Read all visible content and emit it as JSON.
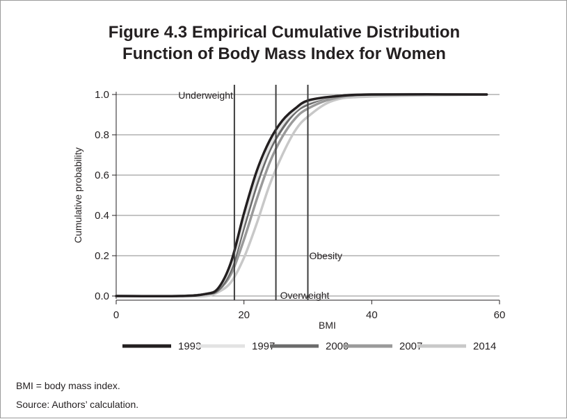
{
  "figure": {
    "title_line1": "Figure 4.3  Empirical Cumulative Distribution",
    "title_line2": "Function of Body Mass Index for Women"
  },
  "notes": {
    "abbreviation": "BMI = body mass index.",
    "source": "Source: Authors’ calculation."
  },
  "chart_data": {
    "type": "line",
    "title": "Figure 4.3  Empirical Cumulative Distribution Function of Body Mass Index for Women",
    "xlabel": "BMI",
    "ylabel": "Cumulative probability",
    "xlim": [
      0,
      60
    ],
    "ylim": [
      0,
      1
    ],
    "xticks": [
      "0",
      "20",
      "40",
      "60"
    ],
    "yticks": [
      "0.0",
      "0.2",
      "0.4",
      "0.6",
      "0.8",
      "1.0"
    ],
    "grid": "horizontal",
    "legend_position": "bottom",
    "reference_lines": [
      {
        "label": "Underweight",
        "x": 18.5
      },
      {
        "label": "Overweight",
        "x": 25
      },
      {
        "label": "Obesity",
        "x": 30
      }
    ],
    "series": [
      {
        "name": "1993",
        "color": "#231f20",
        "x": [
          0,
          10,
          14,
          16,
          18,
          20,
          22,
          24,
          26,
          28,
          30,
          34,
          40,
          58
        ],
        "values": [
          0,
          0,
          0.01,
          0.04,
          0.17,
          0.41,
          0.62,
          0.77,
          0.87,
          0.93,
          0.97,
          0.99,
          1.0,
          1.0
        ]
      },
      {
        "name": "1997",
        "color": "#e3e3e3",
        "x": [
          0,
          10,
          14,
          16,
          18,
          20,
          22,
          24,
          26,
          28,
          30,
          34,
          40,
          58
        ],
        "values": [
          0,
          0,
          0.01,
          0.04,
          0.15,
          0.37,
          0.58,
          0.74,
          0.85,
          0.92,
          0.96,
          0.99,
          1.0,
          1.0
        ]
      },
      {
        "name": "2000",
        "color": "#6b6b6b",
        "x": [
          0,
          10,
          14,
          16,
          18,
          20,
          22,
          24,
          26,
          28,
          30,
          34,
          40,
          58
        ],
        "values": [
          0,
          0,
          0.01,
          0.03,
          0.13,
          0.34,
          0.55,
          0.72,
          0.83,
          0.91,
          0.95,
          0.99,
          1.0,
          1.0
        ]
      },
      {
        "name": "2007",
        "color": "#9a9a9a",
        "x": [
          0,
          10,
          14,
          16,
          18,
          20,
          22,
          24,
          26,
          28,
          30,
          34,
          40,
          58
        ],
        "values": [
          0,
          0,
          0.01,
          0.03,
          0.11,
          0.28,
          0.48,
          0.66,
          0.79,
          0.88,
          0.93,
          0.98,
          1.0,
          1.0
        ]
      },
      {
        "name": "2014",
        "color": "#c8c8c8",
        "x": [
          0,
          10,
          14,
          16,
          18,
          20,
          22,
          24,
          26,
          28,
          30,
          34,
          40,
          58
        ],
        "values": [
          0,
          0,
          0.0,
          0.02,
          0.07,
          0.19,
          0.36,
          0.55,
          0.7,
          0.82,
          0.89,
          0.97,
          0.99,
          1.0
        ]
      }
    ]
  }
}
